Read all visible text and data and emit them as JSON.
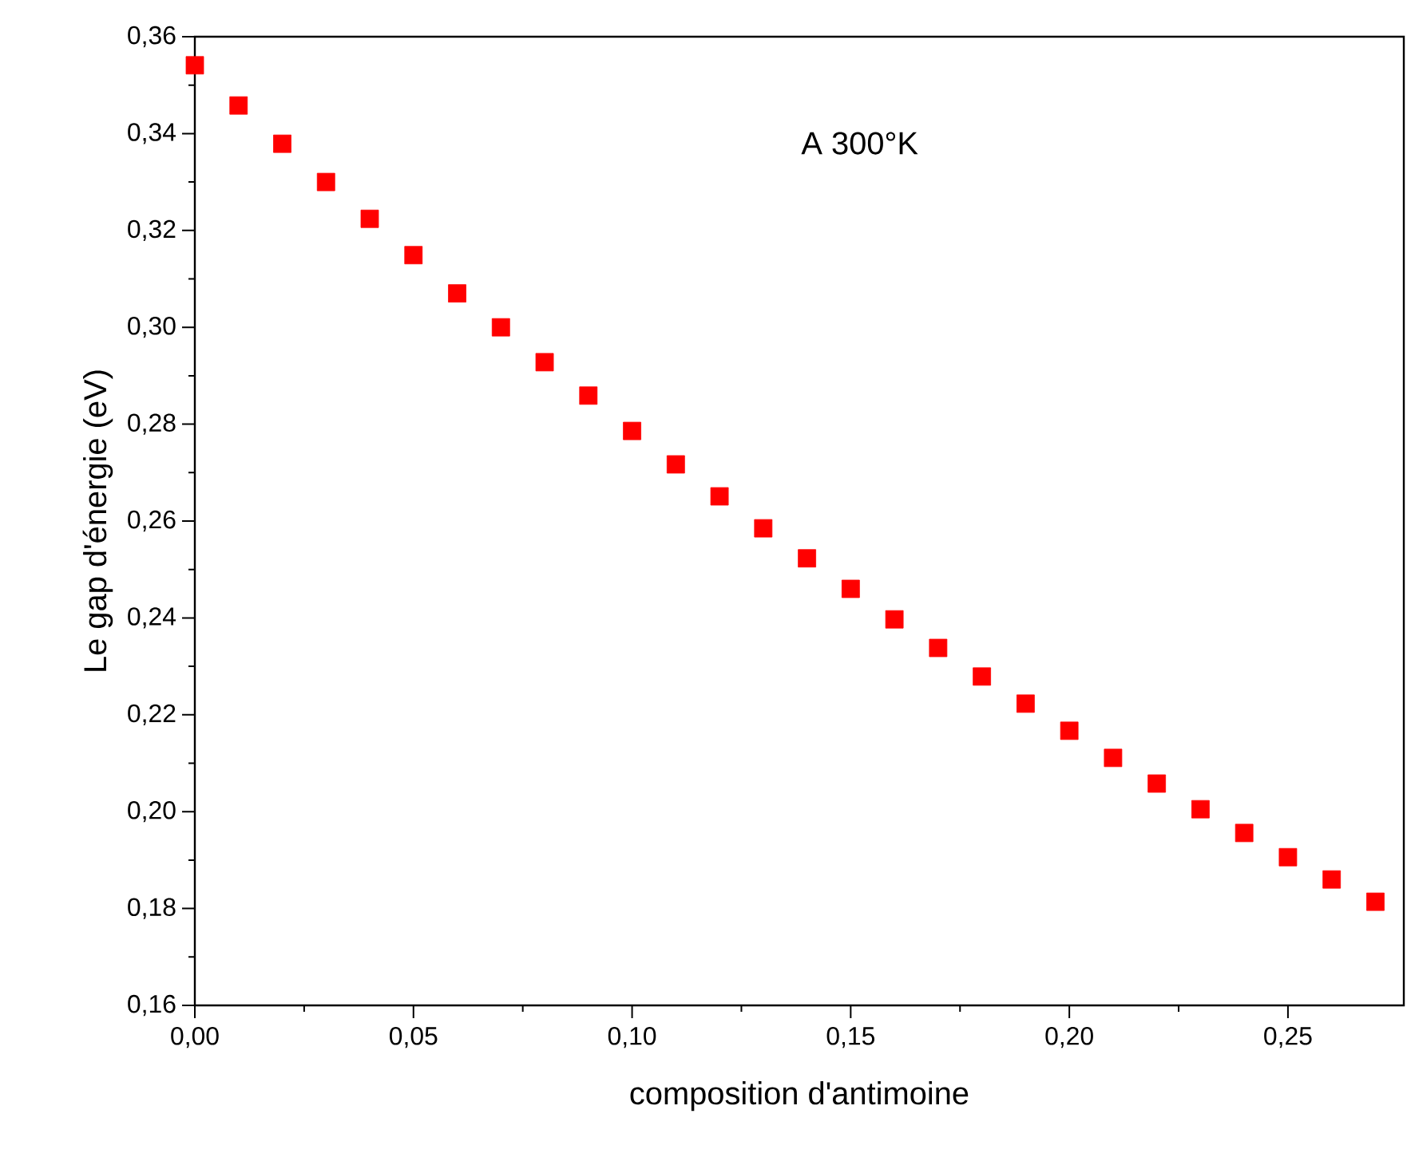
{
  "chart_data": {
    "type": "scatter",
    "xlabel": "composition d'antimoine",
    "ylabel": "Le gap d'énergie (eV)",
    "annotations": [
      "A 300°K"
    ],
    "x": [
      0,
      0.01,
      0.02,
      0.03,
      0.04,
      0.05,
      0.06,
      0.07,
      0.08,
      0.09,
      0.1,
      0.11,
      0.12,
      0.13,
      0.14,
      0.15,
      0.16,
      0.17,
      0.18,
      0.19,
      0.2,
      0.21,
      0.22,
      0.23,
      0.24,
      0.25,
      0.26,
      0.27
    ],
    "series": [
      {
        "color": "#ff0000",
        "values": [
          0.3541,
          0.3458,
          0.3379,
          0.33,
          0.3224,
          0.3149,
          0.307,
          0.3,
          0.2928,
          0.2859,
          0.2786,
          0.2717,
          0.2651,
          0.2585,
          0.2523,
          0.246,
          0.2397,
          0.2338,
          0.2279,
          0.2223,
          0.2167,
          0.2111,
          0.2058,
          0.2005,
          0.1956,
          0.1906,
          0.186,
          0.1814
        ]
      }
    ],
    "marker": "square",
    "xlim": [
      0,
      0.2765
    ],
    "ylim": [
      0.16,
      0.36
    ],
    "xticks": [
      {
        "value": 0,
        "label": "0,00"
      },
      {
        "value": 0.05,
        "label": "0,05"
      },
      {
        "value": 0.1,
        "label": "0,10"
      },
      {
        "value": 0.15,
        "label": "0,15"
      },
      {
        "value": 0.2,
        "label": "0,20"
      },
      {
        "value": 0.25,
        "label": "0,25"
      }
    ],
    "yticks": [
      {
        "value": 0.16,
        "label": "0,16"
      },
      {
        "value": 0.18,
        "label": "0,18"
      },
      {
        "value": 0.2,
        "label": "0,20"
      },
      {
        "value": 0.22,
        "label": "0,22"
      },
      {
        "value": 0.24,
        "label": "0,24"
      },
      {
        "value": 0.26,
        "label": "0,26"
      },
      {
        "value": 0.28,
        "label": "0,28"
      },
      {
        "value": 0.3,
        "label": "0,30"
      },
      {
        "value": 0.32,
        "label": "0,32"
      },
      {
        "value": 0.34,
        "label": "0,34"
      },
      {
        "value": 0.36,
        "label": "0,36"
      }
    ]
  }
}
